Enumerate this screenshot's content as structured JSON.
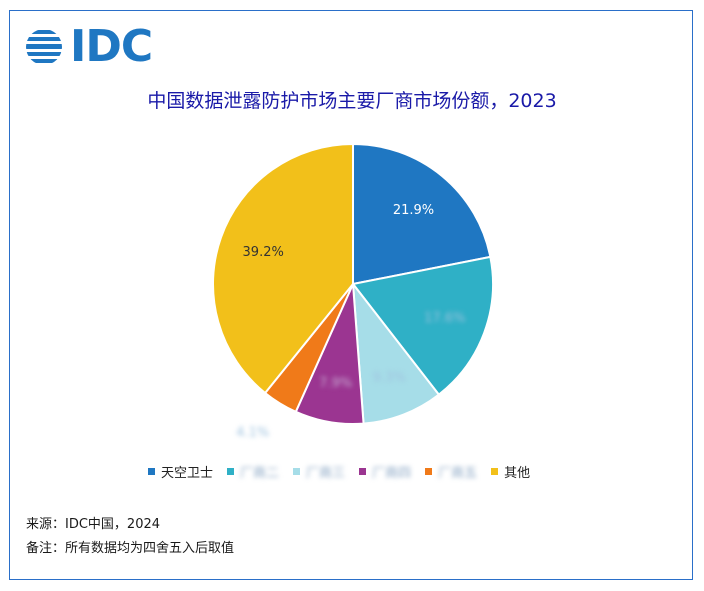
{
  "logo": {
    "text": "IDC",
    "color": "#1f77c2",
    "icon": "idc-globe-icon"
  },
  "title": "中国数据泄露防护市场主要厂商市场份额，2023",
  "chart_data": {
    "type": "pie",
    "title": "中国数据泄露防护市场主要厂商市场份额，2023",
    "start_angle_deg": 0,
    "direction": "clockwise",
    "slices": [
      {
        "name": "天空卫士",
        "value": 21.9,
        "label": "21.9%",
        "color": "#1f77c2",
        "label_color": "#ffffff",
        "blurred": false
      },
      {
        "name": "",
        "value": 17.6,
        "label": "17.6%",
        "color": "#2fb0c6",
        "label_color": "#9fc3df",
        "blurred": true
      },
      {
        "name": "",
        "value": 9.3,
        "label": "9.3%",
        "color": "#a6dde8",
        "label_color": "#9fc3df",
        "blurred": true
      },
      {
        "name": "",
        "value": 7.9,
        "label": "7.9%",
        "color": "#9b3591",
        "label_color": "#c9b0d6",
        "blurred": true
      },
      {
        "name": "",
        "value": 4.1,
        "label": "4.1%",
        "color": "#f07a19",
        "label_color": "#9fc3df",
        "blurred": true
      },
      {
        "name": "其他",
        "value": 39.2,
        "label": "39.2%",
        "color": "#f2c01a",
        "label_color": "#333333",
        "blurred": false
      }
    ],
    "legend_position": "bottom"
  },
  "legend": [
    {
      "label": "天空卫士",
      "color": "#1f77c2",
      "blurred": false
    },
    {
      "label": "厂商二",
      "color": "#2fb0c6",
      "blurred": true
    },
    {
      "label": "厂商三",
      "color": "#a6dde8",
      "blurred": true
    },
    {
      "label": "厂商四",
      "color": "#9b3591",
      "blurred": true
    },
    {
      "label": "厂商五",
      "color": "#f07a19",
      "blurred": true
    },
    {
      "label": "其他",
      "color": "#f2c01a",
      "blurred": false
    }
  ],
  "footer": {
    "source": "来源：IDC中国，2024",
    "note": "备注：所有数据均为四舍五入后取值"
  }
}
